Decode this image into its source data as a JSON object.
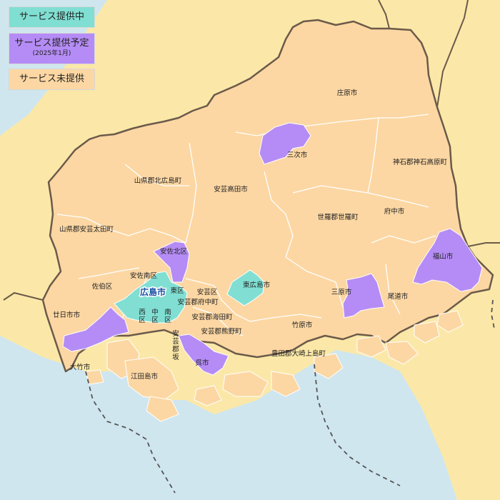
{
  "colors": {
    "sea": "#cfe6ef",
    "other_land": "#fbe8a8",
    "no_service": "#fcd7a3",
    "active": "#80dfd2",
    "planned": "#b58cf5",
    "border": "#6b5a4a",
    "internal_border": "#ffffff",
    "city_label_accent": "#1a4fa3"
  },
  "legend": {
    "active": {
      "label": "サービス提供中"
    },
    "planned": {
      "label": "サービス提供予定",
      "sublabel": "(2025年1月)"
    },
    "none": {
      "label": "サービス未提供"
    }
  },
  "regions": {
    "shobara": "庄原市",
    "miyoshi": "三次市",
    "jinseki": "神石郡神石高原町",
    "kitahiroshima": "山県郡北広島町",
    "akitakata": "安芸高田市",
    "fuchu_city": "府中市",
    "sera": "世羅郡世羅町",
    "akiota": "山県郡安芸太田町",
    "fukuyama": "福山市",
    "asakita": "安佐北区",
    "asaminami": "安佐南区",
    "saeki": "佐伯区",
    "hiroshima": "広島市",
    "higashi_ku": "東区",
    "aki_ku": "安芸区",
    "higashihiroshima": "東広島市",
    "mihara": "三原市",
    "onomichi": "尾道市",
    "fuchu_town": "安芸郡府中町",
    "kaita": "安芸郡海田町",
    "nishi_ku": "西区",
    "naka_ku": "中区",
    "minami_ku": "南区",
    "hatsukaichi": "廿日市市",
    "kumano": "安芸郡熊野町",
    "takehara": "竹原市",
    "saka": "安芸郡坂町",
    "osakikamijima": "豊田郡大崎上島町",
    "kure": "呉市",
    "otake": "大竹市",
    "etajima": "江田島市"
  }
}
